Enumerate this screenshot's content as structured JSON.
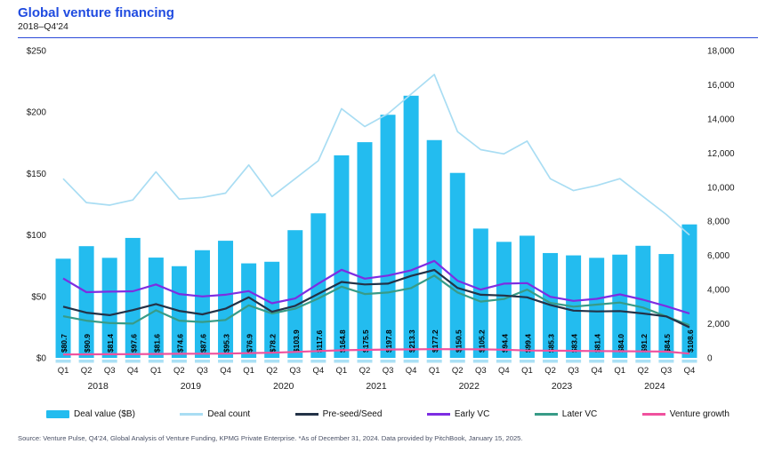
{
  "header": {
    "title": "Global venture financing",
    "subtitle": "2018–Q4'24"
  },
  "footer": {
    "source": "Source: Venture Pulse, Q4'24, Global Analysis of Venture Funding, KPMG Private Enterprise. *As of December 31, 2024. Data provided by PitchBook, January 15, 2025."
  },
  "colors": {
    "title_blue": "#1F4BE0",
    "rule_blue": "#2B4BD8",
    "axis_text": "#1a1a1a",
    "source_text": "#4A5166",
    "bar_tick_light_cyan": "#ABE0F5"
  },
  "chart_data": {
    "type": "bar",
    "subtype": "combo bar + 5 lines, dual axis",
    "grid": false,
    "legend_position": "bottom",
    "quarters": [
      "Q1",
      "Q2",
      "Q3",
      "Q4",
      "Q1",
      "Q2",
      "Q3",
      "Q4",
      "Q1",
      "Q2",
      "Q3",
      "Q4",
      "Q1",
      "Q2",
      "Q3",
      "Q4",
      "Q1",
      "Q2",
      "Q3",
      "Q4",
      "Q1",
      "Q2",
      "Q3",
      "Q4",
      "Q1",
      "Q2",
      "Q3",
      "Q4"
    ],
    "years": [
      "2018",
      "2019",
      "2020",
      "2021",
      "2022",
      "2023",
      "2024"
    ],
    "left_axis": {
      "ticks_bottom_to_top": [
        "$0",
        "$50",
        "$100",
        "$150",
        "$200",
        "$250"
      ],
      "max": 250
    },
    "right_axis": {
      "ticks_bottom_to_top": [
        "0",
        "2,000",
        "4,000",
        "6,000",
        "8,000",
        "10,000",
        "12,000",
        "14,000",
        "16,000",
        "18,000"
      ],
      "max": 18000
    },
    "series": [
      {
        "name": "Deal value ($B)",
        "type": "bar",
        "axis": "left",
        "color": "#23BCEF",
        "values": [
          80.7,
          90.9,
          81.4,
          97.6,
          81.6,
          74.6,
          87.6,
          95.3,
          76.9,
          78.2,
          103.9,
          117.6,
          164.8,
          175.5,
          197.8,
          213.3,
          177.2,
          150.5,
          105.2,
          94.4,
          99.4,
          85.3,
          83.4,
          81.4,
          84.0,
          91.2,
          84.5,
          108.6
        ],
        "bar_labels": [
          "$80.7",
          "$90.9",
          "$81.4",
          "$97.6",
          "$81.6",
          "$74.6",
          "$87.6",
          "$95.3",
          "$76.9",
          "$78.2",
          "$103.9",
          "$117.6",
          "$164.8",
          "$175.5",
          "$197.8",
          "$213.3",
          "$177.2",
          "$150.5",
          "$105.2",
          "$94.4",
          "$99.4",
          "$85.3",
          "$83.4",
          "$81.4",
          "$84.0",
          "$91.2",
          "$84.5",
          "$108.6"
        ]
      },
      {
        "name": "Deal count",
        "type": "line",
        "axis": "right",
        "color": "#A9DDF3",
        "stroke_width": 1.7,
        "values": [
          10500,
          9100,
          8950,
          9250,
          10900,
          9300,
          9400,
          9650,
          11300,
          9450,
          10500,
          11550,
          14600,
          13550,
          14300,
          15450,
          16600,
          13250,
          12200,
          11950,
          12700,
          10500,
          9800,
          10100,
          10500,
          9450,
          8400,
          7200
        ]
      },
      {
        "name": "Later VC",
        "type": "line",
        "axis": "right",
        "color": "#389B87",
        "stroke_width": 2.2,
        "values": [
          2440,
          2180,
          2040,
          2010,
          2790,
          2180,
          2100,
          2220,
          3080,
          2600,
          2880,
          3480,
          4170,
          3740,
          3830,
          4090,
          4820,
          3830,
          3300,
          3450,
          4000,
          3220,
          3000,
          3120,
          3240,
          2950,
          2430,
          1910
        ]
      },
      {
        "name": "Pre-seed/Seed",
        "type": "line",
        "axis": "right",
        "color": "#233247",
        "stroke_width": 2.2,
        "values": [
          3000,
          2650,
          2500,
          2800,
          3150,
          2750,
          2550,
          2880,
          3550,
          2700,
          3050,
          3750,
          4450,
          4300,
          4350,
          4800,
          5150,
          4100,
          3700,
          3650,
          3550,
          3100,
          2770,
          2720,
          2740,
          2600,
          2430,
          1790
        ]
      },
      {
        "name": "Early VC",
        "type": "line",
        "axis": "right",
        "color": "#7D2DE2",
        "stroke_width": 2.2,
        "values": [
          4650,
          3850,
          3880,
          3900,
          4300,
          3740,
          3600,
          3700,
          3910,
          3200,
          3480,
          4350,
          5160,
          4640,
          4820,
          5130,
          5680,
          4520,
          4000,
          4350,
          4380,
          3580,
          3340,
          3460,
          3720,
          3410,
          3030,
          2600
        ]
      },
      {
        "name": "Venture growth",
        "type": "line",
        "axis": "right",
        "color": "#F0519E",
        "stroke_width": 2.2,
        "values": [
          200,
          210,
          215,
          220,
          230,
          240,
          245,
          250,
          280,
          300,
          350,
          400,
          450,
          470,
          490,
          500,
          510,
          505,
          500,
          480,
          430,
          420,
          410,
          400,
          390,
          380,
          370,
          250
        ]
      }
    ],
    "legend_order": [
      "Deal value ($B)",
      "Deal count",
      "Pre-seed/Seed",
      "Early VC",
      "Later VC",
      "Venture growth"
    ]
  }
}
